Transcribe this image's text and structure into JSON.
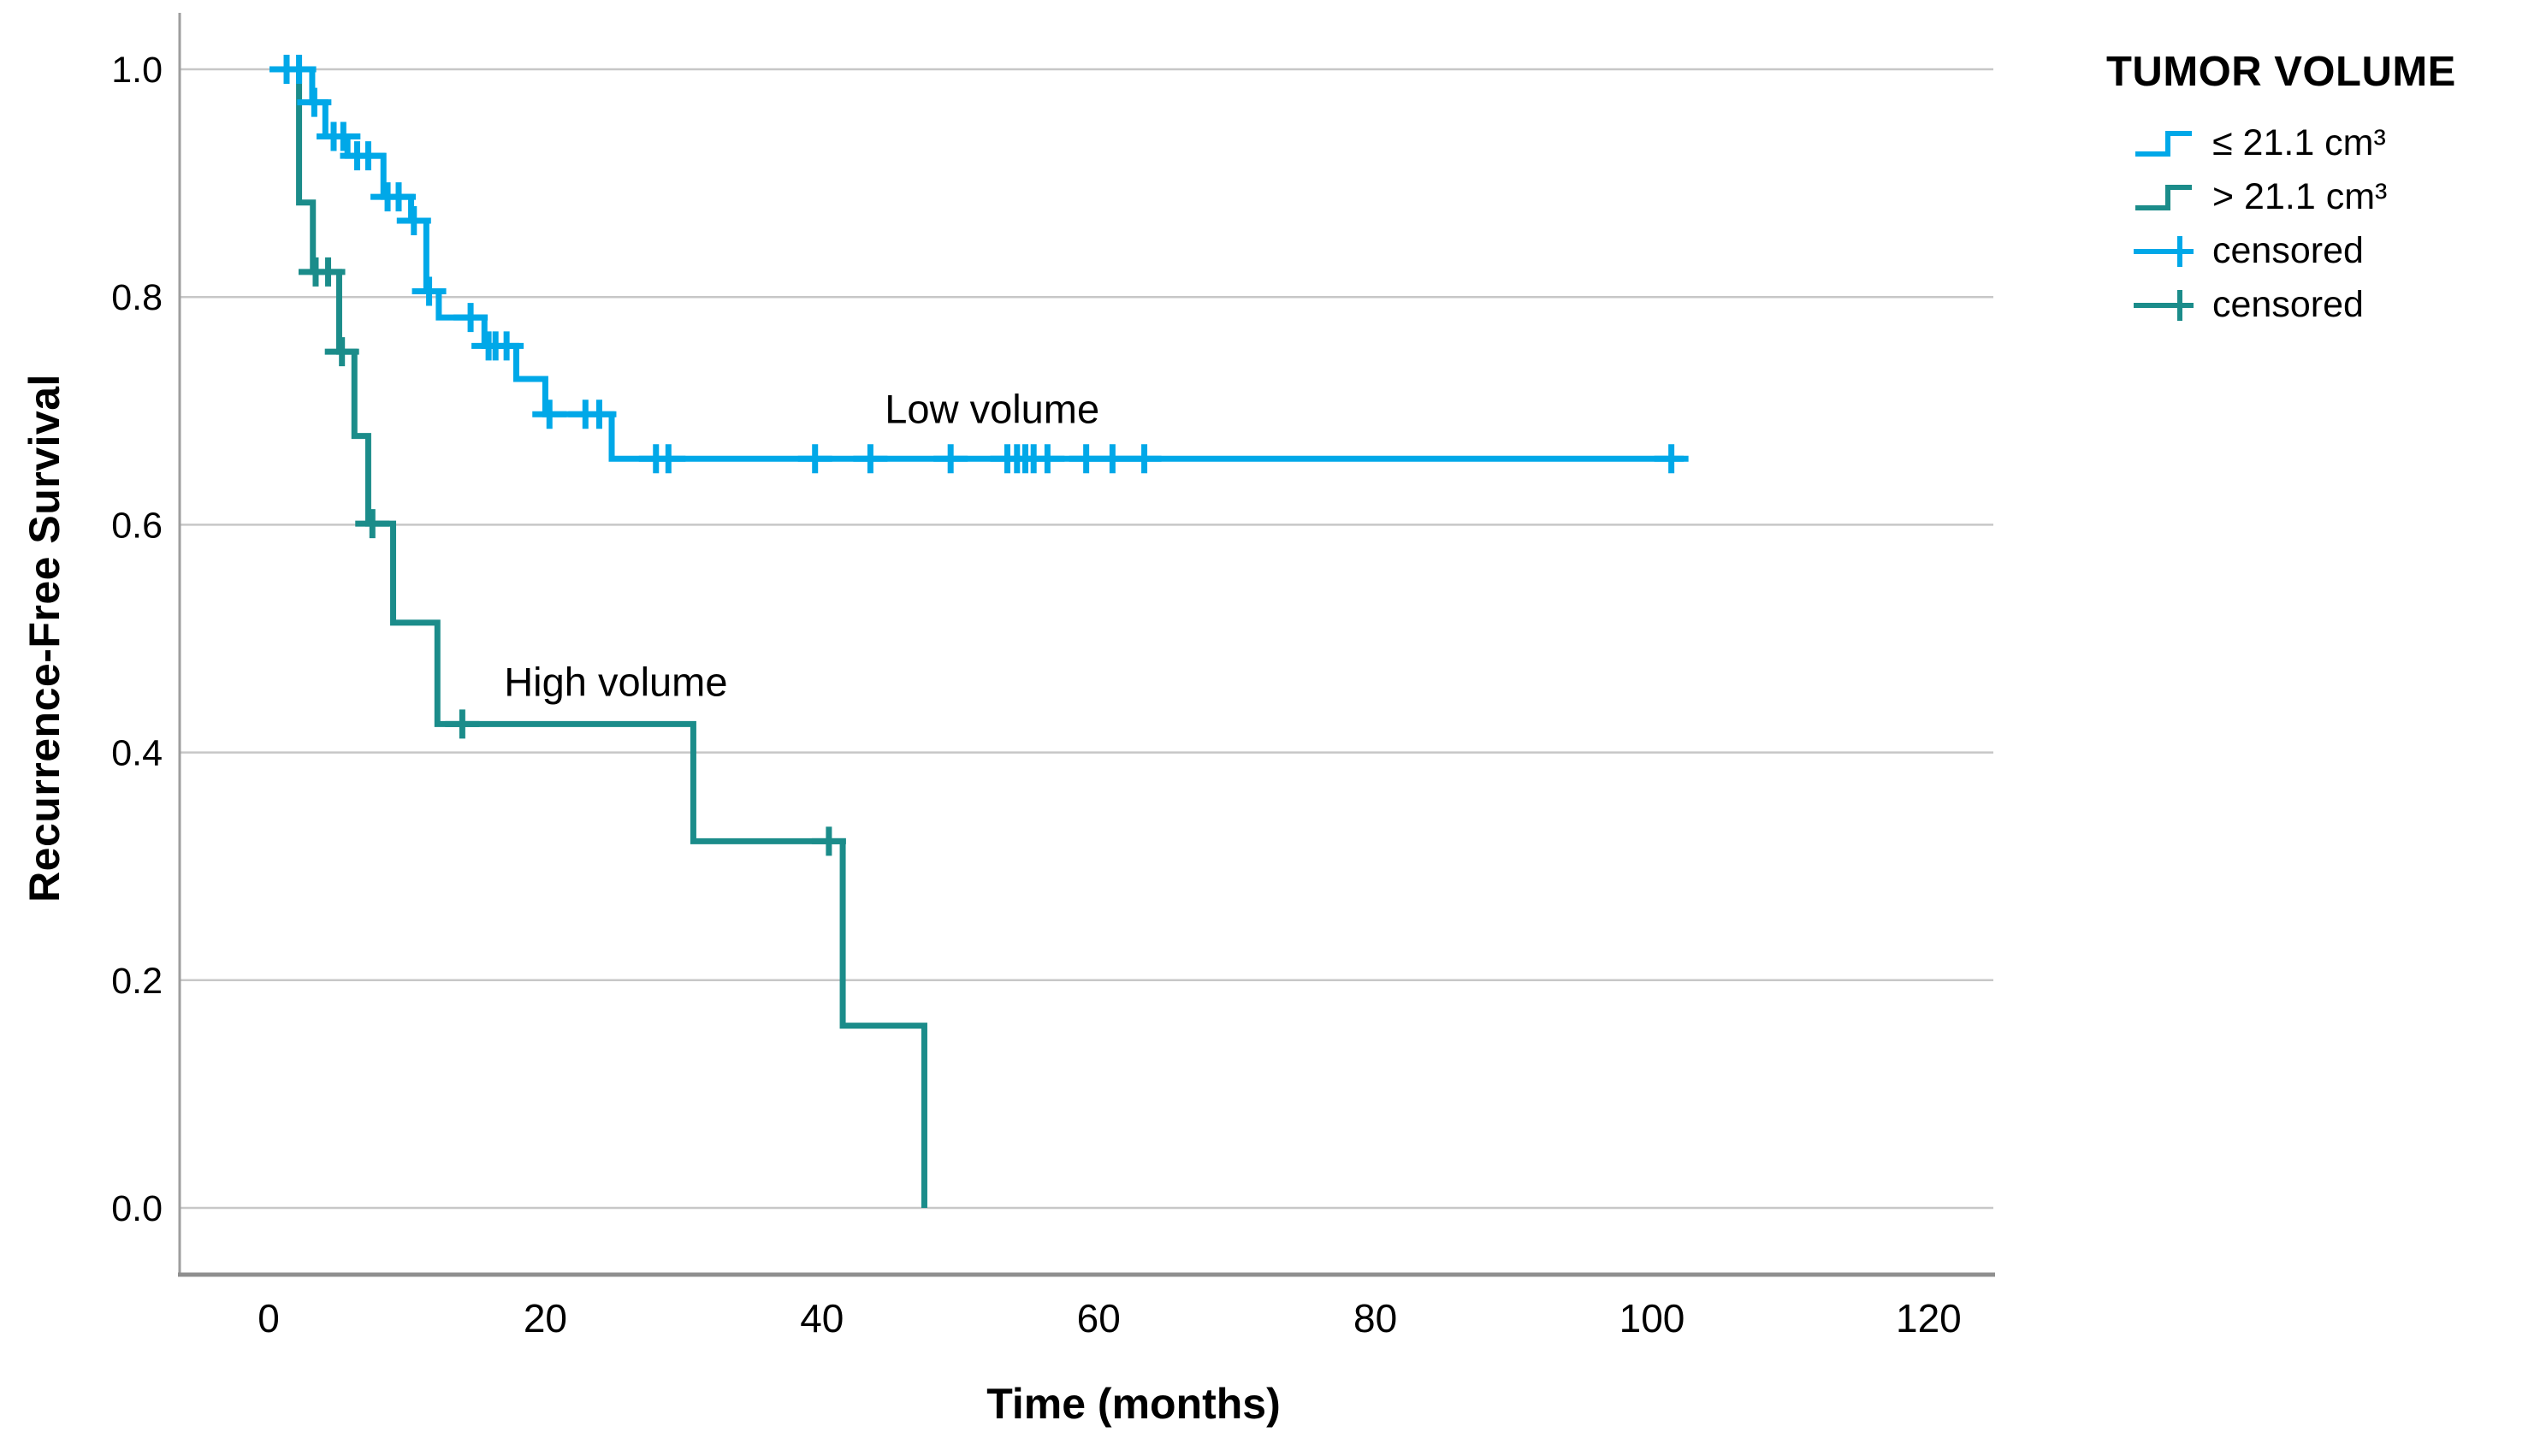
{
  "figure": {
    "background": "#ffffff"
  },
  "chart_data": {
    "type": "line",
    "subtype": "kaplan-meier-step",
    "title": "",
    "xlabel": "Time (months)",
    "ylabel": "Recurrence-Free Survival",
    "x_ticks": [
      0,
      20,
      40,
      60,
      80,
      100,
      120
    ],
    "y_ticks": [
      "0.0",
      "0.2",
      "0.4",
      "0.6",
      "0.8",
      "1.0"
    ],
    "xlim": [
      -6.4,
      125
    ],
    "ylim": [
      -0.06,
      1.06
    ],
    "grid": "horizontal-only",
    "legend_position": "right",
    "series": [
      {
        "name": "≤ 21.1 cm³",
        "annotation": "Low volume",
        "color": "#00A8E8",
        "steps": [
          [
            0.25,
            1.0
          ],
          [
            3.15,
            0.971
          ],
          [
            4.1,
            0.941
          ],
          [
            5.7,
            0.924
          ],
          [
            8.3,
            0.888
          ],
          [
            10.3,
            0.867
          ],
          [
            11.4,
            0.805
          ],
          [
            12.3,
            0.782
          ],
          [
            15.6,
            0.757
          ],
          [
            17.9,
            0.728
          ],
          [
            20.0,
            0.697
          ],
          [
            24.8,
            0.658
          ]
        ],
        "end_time": 102.3,
        "censored": [
          [
            1.3,
            1.0
          ],
          [
            2.2,
            1.0
          ],
          [
            3.3,
            0.971
          ],
          [
            4.7,
            0.941
          ],
          [
            5.4,
            0.941
          ],
          [
            6.4,
            0.924
          ],
          [
            7.2,
            0.924
          ],
          [
            8.6,
            0.888
          ],
          [
            9.4,
            0.888
          ],
          [
            10.5,
            0.867
          ],
          [
            11.6,
            0.805
          ],
          [
            14.6,
            0.782
          ],
          [
            15.9,
            0.757
          ],
          [
            16.4,
            0.757
          ],
          [
            17.2,
            0.757
          ],
          [
            20.3,
            0.697
          ],
          [
            22.9,
            0.697
          ],
          [
            23.9,
            0.697
          ],
          [
            28.0,
            0.658
          ],
          [
            28.9,
            0.658
          ],
          [
            39.5,
            0.658
          ],
          [
            43.5,
            0.658
          ],
          [
            49.3,
            0.658
          ],
          [
            53.4,
            0.658
          ],
          [
            54.1,
            0.658
          ],
          [
            54.7,
            0.658
          ],
          [
            55.3,
            0.658
          ],
          [
            56.3,
            0.658
          ],
          [
            59.1,
            0.658
          ],
          [
            61.0,
            0.658
          ],
          [
            63.3,
            0.658
          ],
          [
            101.4,
            0.658
          ]
        ]
      },
      {
        "name": "> 21.1 cm³",
        "annotation": "High volume",
        "color": "#1B8C8A",
        "steps": [
          [
            0.25,
            1.0
          ],
          [
            2.2,
            0.883
          ],
          [
            3.2,
            0.822
          ],
          [
            5.1,
            0.752
          ],
          [
            6.2,
            0.678
          ],
          [
            7.2,
            0.601
          ],
          [
            9.0,
            0.514
          ],
          [
            12.2,
            0.425
          ],
          [
            30.7,
            0.322
          ],
          [
            41.5,
            0.16
          ],
          [
            47.4,
            0.0
          ]
        ],
        "end_time": 47.4,
        "censored": [
          [
            3.4,
            0.822
          ],
          [
            4.3,
            0.822
          ],
          [
            5.3,
            0.752
          ],
          [
            7.5,
            0.601
          ],
          [
            14.0,
            0.425
          ],
          [
            40.5,
            0.322
          ]
        ]
      }
    ]
  },
  "legend": {
    "title": "TUMOR VOLUME",
    "entries": [
      {
        "label": "≤ 21.1 cm³",
        "symbol": "step",
        "color": "#00A8E8"
      },
      {
        "label": "> 21.1 cm³",
        "symbol": "step",
        "color": "#1B8C8A"
      },
      {
        "label": "censored",
        "symbol": "plus",
        "color": "#00A8E8"
      },
      {
        "label": "censored",
        "symbol": "plus",
        "color": "#1B8C8A"
      }
    ]
  },
  "annotations": [
    {
      "text": "Low volume",
      "t": 52.3,
      "v": 0.702
    },
    {
      "text": "High volume",
      "t": 25.1,
      "v": 0.462
    }
  ],
  "colors": {
    "grid": "#c7c7c7",
    "y_axis": "#9e9e9e",
    "x_axis": "#8f8f8f",
    "text": "#000000",
    "background": "#ffffff"
  }
}
